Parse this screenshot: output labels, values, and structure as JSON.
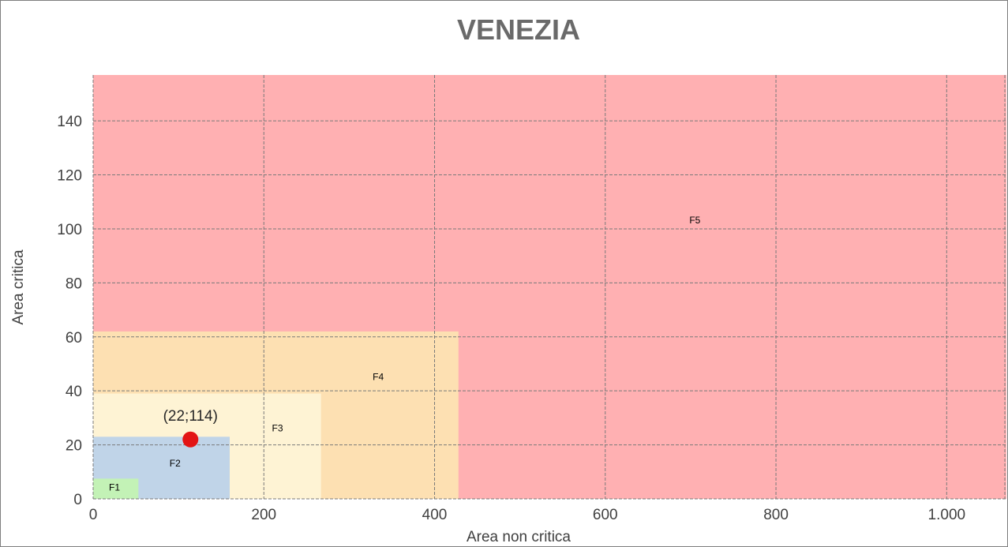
{
  "chart_data": {
    "type": "scatter",
    "title": "VENEZIA",
    "xlabel": "Area non critica",
    "ylabel": "Area critica",
    "xlim": [
      0,
      1070
    ],
    "ylim": [
      0,
      157
    ],
    "x_ticks": [
      {
        "value": 0,
        "label": "0"
      },
      {
        "value": 200,
        "label": "200"
      },
      {
        "value": 400,
        "label": "400"
      },
      {
        "value": 600,
        "label": "600"
      },
      {
        "value": 800,
        "label": "800"
      },
      {
        "value": 1000,
        "label": "1.000"
      }
    ],
    "y_ticks": [
      {
        "value": 0,
        "label": "0"
      },
      {
        "value": 20,
        "label": "20"
      },
      {
        "value": 40,
        "label": "40"
      },
      {
        "value": 60,
        "label": "60"
      },
      {
        "value": 80,
        "label": "80"
      },
      {
        "value": 100,
        "label": "100"
      },
      {
        "value": 120,
        "label": "120"
      },
      {
        "value": 140,
        "label": "140"
      }
    ],
    "grid": true,
    "zones": [
      {
        "name": "F5",
        "x_max": 1070,
        "y_max": 157,
        "color": "#ffb0b2",
        "label_at": [
          705,
          102
        ]
      },
      {
        "name": "F4",
        "x_max": 428,
        "y_max": 62,
        "color": "#fde0b2",
        "label_at": [
          334,
          44
        ]
      },
      {
        "name": "F3",
        "x_max": 267,
        "y_max": 39,
        "color": "#fef3d4",
        "label_at": [
          216,
          25
        ]
      },
      {
        "name": "F2",
        "x_max": 160,
        "y_max": 23,
        "color": "#c0d4e8",
        "label_at": [
          96,
          12
        ]
      },
      {
        "name": "F1",
        "x_max": 53,
        "y_max": 7.5,
        "color": "#c3f2b6",
        "label_at": [
          25,
          3
        ]
      }
    ],
    "points": [
      {
        "x": 114,
        "y": 22,
        "label": "(22;114)",
        "color": "#e31414"
      }
    ]
  }
}
